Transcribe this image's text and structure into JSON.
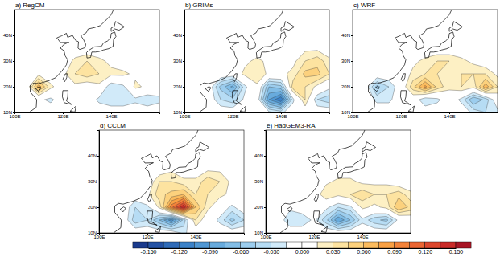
{
  "chart_data": [
    {
      "type": "contour",
      "title": "a) RegCM",
      "x": [
        100,
        105,
        110,
        115,
        120,
        125,
        130,
        135,
        140,
        145,
        150,
        155,
        160
      ],
      "y": [
        10,
        15,
        20,
        25,
        30,
        35,
        40,
        45,
        50
      ],
      "xlim": [
        100,
        160
      ],
      "ylim": [
        10,
        50
      ],
      "xticks": [
        {
          "value": 100,
          "label": "100E"
        },
        {
          "value": 120,
          "label": "120E"
        },
        {
          "value": 140,
          "label": "140E"
        }
      ],
      "yticks": [
        {
          "value": 10,
          "label": "10N"
        },
        {
          "value": 20,
          "label": "20N"
        },
        {
          "value": 30,
          "label": "30N"
        },
        {
          "value": 40,
          "label": "40N"
        }
      ],
      "values": [
        [
          0,
          0,
          0,
          0,
          0,
          0,
          0,
          0,
          0,
          0,
          0,
          0,
          0
        ],
        [
          0,
          0,
          -0.01,
          -0.02,
          0,
          0,
          0,
          -0.02,
          -0.03,
          -0.03,
          -0.02,
          -0.03,
          -0.02
        ],
        [
          0,
          0,
          0.07,
          0.02,
          0,
          0.01,
          0,
          0.01,
          -0.03,
          -0.02,
          0.02,
          0.01,
          0
        ],
        [
          0,
          0,
          0.01,
          0,
          0.01,
          0.03,
          0.04,
          0.03,
          0.02,
          0.02,
          0.01,
          0,
          0
        ],
        [
          0,
          0,
          0,
          0,
          0,
          0.02,
          0.03,
          0.02,
          0.01,
          0,
          0,
          0,
          0
        ],
        [
          0,
          0,
          0,
          0,
          0,
          0,
          0,
          0,
          0,
          0,
          0,
          0,
          0
        ],
        [
          0,
          0,
          0,
          0,
          0,
          0,
          0,
          0,
          0,
          0,
          0,
          0,
          0
        ],
        [
          0,
          0,
          0,
          0,
          0,
          0,
          0,
          0,
          0,
          0,
          0,
          0,
          0
        ],
        [
          0,
          0,
          0,
          0,
          0,
          0,
          0,
          0,
          0,
          0,
          0,
          0,
          0
        ]
      ]
    },
    {
      "type": "contour",
      "title": "b) GRIMs",
      "x": [
        100,
        105,
        110,
        115,
        120,
        125,
        130,
        135,
        140,
        145,
        150,
        155,
        160
      ],
      "y": [
        10,
        15,
        20,
        25,
        30,
        35,
        40,
        45,
        50
      ],
      "xlim": [
        100,
        160
      ],
      "ylim": [
        10,
        50
      ],
      "xticks": [
        {
          "value": 100,
          "label": "100E"
        },
        {
          "value": 120,
          "label": "120E"
        },
        {
          "value": 140,
          "label": "140E"
        }
      ],
      "yticks": [
        {
          "value": 10,
          "label": "10N"
        },
        {
          "value": 20,
          "label": "20N"
        },
        {
          "value": 30,
          "label": "30N"
        },
        {
          "value": 40,
          "label": "40N"
        }
      ],
      "values": [
        [
          0,
          0,
          0,
          0,
          0,
          0,
          0,
          -0.01,
          -0.02,
          0,
          0,
          0,
          0
        ],
        [
          0,
          0,
          0,
          -0.03,
          -0.04,
          -0.01,
          0,
          -0.09,
          -0.12,
          -0.02,
          0.03,
          -0.03,
          -0.04
        ],
        [
          0,
          0,
          0,
          -0.05,
          -0.08,
          -0.02,
          0.01,
          -0.06,
          -0.05,
          0.04,
          0.03,
          0.01,
          -0.01
        ],
        [
          0,
          0,
          0,
          0,
          0,
          0.02,
          0.03,
          0.01,
          0.01,
          0.02,
          0.05,
          0.05,
          0.03
        ],
        [
          0,
          0,
          0,
          0,
          0,
          0.01,
          0.02,
          0.01,
          0,
          0.01,
          0.03,
          0.04,
          0.02
        ],
        [
          0,
          0,
          0,
          0,
          0,
          0,
          0,
          0,
          0,
          0,
          0.01,
          0.01,
          0
        ],
        [
          0,
          0,
          0,
          0,
          0,
          0,
          0,
          0,
          0,
          0,
          0,
          0,
          0
        ],
        [
          0,
          0,
          0,
          0,
          0,
          0,
          0,
          0,
          0,
          0,
          0,
          0,
          0
        ],
        [
          0,
          0,
          0,
          0,
          0,
          0,
          0,
          0,
          0,
          0,
          0,
          0,
          0
        ]
      ]
    },
    {
      "type": "contour",
      "title": "c) WRF",
      "x": [
        100,
        105,
        110,
        115,
        120,
        125,
        130,
        135,
        140,
        145,
        150,
        155,
        160
      ],
      "y": [
        10,
        15,
        20,
        25,
        30,
        35,
        40,
        45,
        50
      ],
      "xlim": [
        100,
        160
      ],
      "ylim": [
        10,
        50
      ],
      "xticks": [
        {
          "value": 100,
          "label": "100E"
        },
        {
          "value": 120,
          "label": "120E"
        },
        {
          "value": 140,
          "label": "140E"
        }
      ],
      "yticks": [
        {
          "value": 10,
          "label": "10N"
        },
        {
          "value": 20,
          "label": "20N"
        },
        {
          "value": 30,
          "label": "30N"
        },
        {
          "value": 40,
          "label": "40N"
        }
      ],
      "values": [
        [
          0,
          0,
          0,
          0,
          0,
          0,
          0,
          0,
          0,
          0,
          -0.02,
          -0.03,
          -0.02
        ],
        [
          0,
          0,
          -0.02,
          -0.02,
          0,
          0,
          -0.03,
          -0.02,
          0,
          -0.02,
          -0.06,
          -0.04,
          0
        ],
        [
          0,
          0,
          -0.05,
          -0.03,
          0,
          0.04,
          0.08,
          0.04,
          0.02,
          0.03,
          0.02,
          0.07,
          0.03
        ],
        [
          0,
          0,
          0,
          0,
          0,
          0.02,
          0.03,
          0.03,
          0.02,
          0.03,
          0.03,
          0.03,
          0.01
        ],
        [
          0,
          0,
          0,
          0,
          0,
          0.01,
          0.02,
          0.03,
          0.03,
          0.02,
          0.01,
          0,
          0
        ],
        [
          0,
          0,
          0,
          0,
          0,
          0,
          0,
          0,
          0,
          0,
          0,
          0,
          0
        ],
        [
          0,
          0,
          0,
          0,
          0,
          0,
          0,
          0,
          0,
          0,
          0,
          0,
          0
        ],
        [
          0,
          0,
          0,
          0,
          0,
          0,
          0,
          0,
          0,
          0,
          0,
          0,
          0
        ],
        [
          0,
          0,
          0,
          0,
          0,
          0,
          0,
          0,
          0,
          0,
          0,
          0,
          0
        ]
      ]
    },
    {
      "type": "contour",
      "title": "d) CCLM",
      "x": [
        100,
        105,
        110,
        115,
        120,
        125,
        130,
        135,
        140,
        145,
        150,
        155,
        160
      ],
      "y": [
        10,
        15,
        20,
        25,
        30,
        35,
        40,
        45,
        50
      ],
      "xlim": [
        100,
        160
      ],
      "ylim": [
        10,
        50
      ],
      "xticks": [
        {
          "value": 100,
          "label": "100E"
        },
        {
          "value": 120,
          "label": "120E"
        },
        {
          "value": 140,
          "label": "140E"
        }
      ],
      "yticks": [
        {
          "value": 10,
          "label": "10N"
        },
        {
          "value": 20,
          "label": "20N"
        },
        {
          "value": 30,
          "label": "30N"
        },
        {
          "value": 40,
          "label": "40N"
        }
      ],
      "values": [
        [
          0,
          0,
          0,
          0,
          0,
          0,
          0,
          -0.02,
          0,
          0,
          0,
          0,
          0
        ],
        [
          0,
          0,
          0,
          -0.04,
          -0.03,
          -0.06,
          -0.1,
          -0.04,
          0.03,
          0,
          -0.02,
          -0.05,
          -0.03
        ],
        [
          0,
          0,
          0,
          -0.03,
          -0.02,
          0.02,
          0.1,
          0.15,
          0.06,
          0.02,
          0,
          -0.02,
          0
        ],
        [
          0,
          0,
          0,
          0,
          0.01,
          0.04,
          0.05,
          0.06,
          0.03,
          0.03,
          0.02,
          0.01,
          0
        ],
        [
          0,
          0,
          0,
          0,
          0,
          0.03,
          0.03,
          0.02,
          0.02,
          0.04,
          0.03,
          0.01,
          0
        ],
        [
          0,
          0,
          0,
          0,
          0,
          0,
          0.01,
          0,
          0,
          0.01,
          0.01,
          0,
          0
        ],
        [
          0,
          0,
          0,
          0,
          0,
          0,
          0,
          0,
          0,
          0,
          0,
          0,
          0
        ],
        [
          0,
          0,
          0,
          0,
          0,
          0,
          0,
          0,
          0,
          0,
          0,
          0,
          0
        ],
        [
          0,
          0,
          0,
          0,
          0,
          0,
          0,
          0,
          0,
          0,
          0,
          0,
          0
        ]
      ]
    },
    {
      "type": "contour",
      "title": "e) HadGEM3-RA",
      "x": [
        100,
        105,
        110,
        115,
        120,
        125,
        130,
        135,
        140,
        145,
        150,
        155,
        160
      ],
      "y": [
        10,
        15,
        20,
        25,
        30,
        35,
        40,
        45,
        50
      ],
      "xlim": [
        100,
        160
      ],
      "ylim": [
        10,
        50
      ],
      "xticks": [
        {
          "value": 100,
          "label": "100E"
        },
        {
          "value": 120,
          "label": "120E"
        },
        {
          "value": 140,
          "label": "140E"
        }
      ],
      "yticks": [
        {
          "value": 10,
          "label": "10N"
        },
        {
          "value": 20,
          "label": "20N"
        },
        {
          "value": 30,
          "label": "30N"
        },
        {
          "value": 40,
          "label": "40N"
        }
      ],
      "values": [
        [
          0,
          0,
          0,
          0,
          0,
          0,
          0,
          0,
          0,
          0,
          0,
          0,
          0
        ],
        [
          0,
          0,
          -0.03,
          -0.03,
          -0.01,
          -0.04,
          -0.09,
          -0.06,
          -0.02,
          -0.04,
          -0.05,
          -0.01,
          0
        ],
        [
          0,
          0,
          -0.01,
          0,
          0,
          -0.01,
          -0.03,
          -0.02,
          0.02,
          0.01,
          0.02,
          0.06,
          0.04
        ],
        [
          0,
          0,
          0,
          0,
          0,
          0.03,
          0.02,
          0.03,
          0.04,
          0.03,
          0.03,
          0.04,
          0.02
        ],
        [
          0,
          0,
          0,
          0,
          0,
          0.01,
          0.02,
          0.02,
          0.01,
          0.01,
          0.01,
          0,
          0
        ],
        [
          0,
          0,
          0,
          0,
          0,
          0,
          0,
          0,
          0,
          0,
          0,
          0,
          0
        ],
        [
          0,
          0,
          0,
          0,
          0,
          0,
          0,
          0,
          0,
          0,
          0,
          0,
          0
        ],
        [
          0,
          0,
          0,
          0,
          0,
          0,
          0,
          0,
          0,
          0,
          0,
          0,
          0
        ],
        [
          0,
          0,
          0,
          0,
          0,
          0,
          0,
          0,
          0,
          0,
          0,
          0,
          0
        ]
      ]
    },
    {
      "type": "colorbar",
      "levels": [
        -0.15,
        -0.135,
        -0.12,
        -0.105,
        -0.09,
        -0.075,
        -0.06,
        -0.045,
        -0.03,
        -0.015,
        0,
        0.015,
        0.03,
        0.045,
        0.06,
        0.075,
        0.09,
        0.105,
        0.12,
        0.135,
        0.15
      ],
      "colors": [
        "#1a3a8c",
        "#2452a4",
        "#2f6bb8",
        "#3c82c8",
        "#5097d3",
        "#68abdd",
        "#82bde6",
        "#9ccdee",
        "#b6dcf4",
        "#d1eaf9",
        "#ffffff",
        "#ffffff",
        "#fdf0c4",
        "#fde3a0",
        "#fcd17d",
        "#fbbb5e",
        "#f8a044",
        "#f3833a",
        "#ea6533",
        "#dc472d",
        "#c92a28",
        "#a81424"
      ],
      "ticks": [
        {
          "value": -0.15,
          "label": "-0.150"
        },
        {
          "value": -0.12,
          "label": "-0.120"
        },
        {
          "value": -0.09,
          "label": "-0.090"
        },
        {
          "value": -0.06,
          "label": "-0.060"
        },
        {
          "value": -0.03,
          "label": "-0.030"
        },
        {
          "value": 0,
          "label": "0.000"
        },
        {
          "value": 0.03,
          "label": "0.030"
        },
        {
          "value": 0.06,
          "label": "0.060"
        },
        {
          "value": 0.09,
          "label": "0.090"
        },
        {
          "value": 0.12,
          "label": "0.120"
        },
        {
          "value": 0.15,
          "label": "0.150"
        }
      ]
    }
  ]
}
